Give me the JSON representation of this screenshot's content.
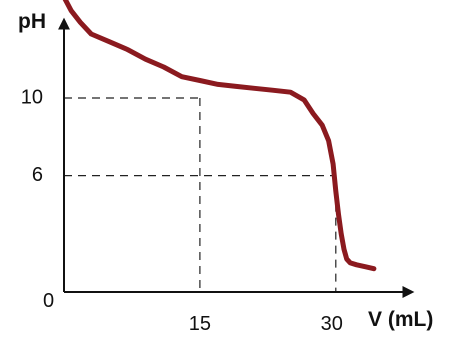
{
  "chart_data": {
    "type": "line",
    "title": "",
    "xlabel": "V (mL)",
    "ylabel": "pH",
    "origin_label": "0",
    "x_ticks": [
      "15",
      "30"
    ],
    "y_ticks": [
      "10",
      "6"
    ],
    "xlim": [
      0,
      38
    ],
    "ylim": [
      0,
      15.5
    ],
    "guides": [
      {
        "x": 15,
        "y": 10
      },
      {
        "x": 30,
        "y": 6
      }
    ],
    "series": [
      {
        "color": "#8b1a1f",
        "x": [
          0,
          0.8,
          1.8,
          3,
          5,
          7,
          9,
          11,
          13,
          15,
          17,
          19,
          21,
          23,
          25,
          26.5,
          27.5,
          28.5,
          29.2,
          29.7,
          30,
          30.3,
          30.6,
          30.9,
          31.2,
          31.6,
          32.3,
          33.3,
          34.2
        ],
        "y": [
          15.2,
          14.5,
          13.9,
          13.3,
          12.9,
          12.5,
          12.0,
          11.6,
          11.1,
          10.9,
          10.7,
          10.6,
          10.5,
          10.4,
          10.3,
          9.9,
          9.2,
          8.6,
          7.8,
          6.6,
          5.2,
          4.0,
          3.0,
          2.2,
          1.7,
          1.5,
          1.4,
          1.3,
          1.2
        ]
      }
    ]
  }
}
